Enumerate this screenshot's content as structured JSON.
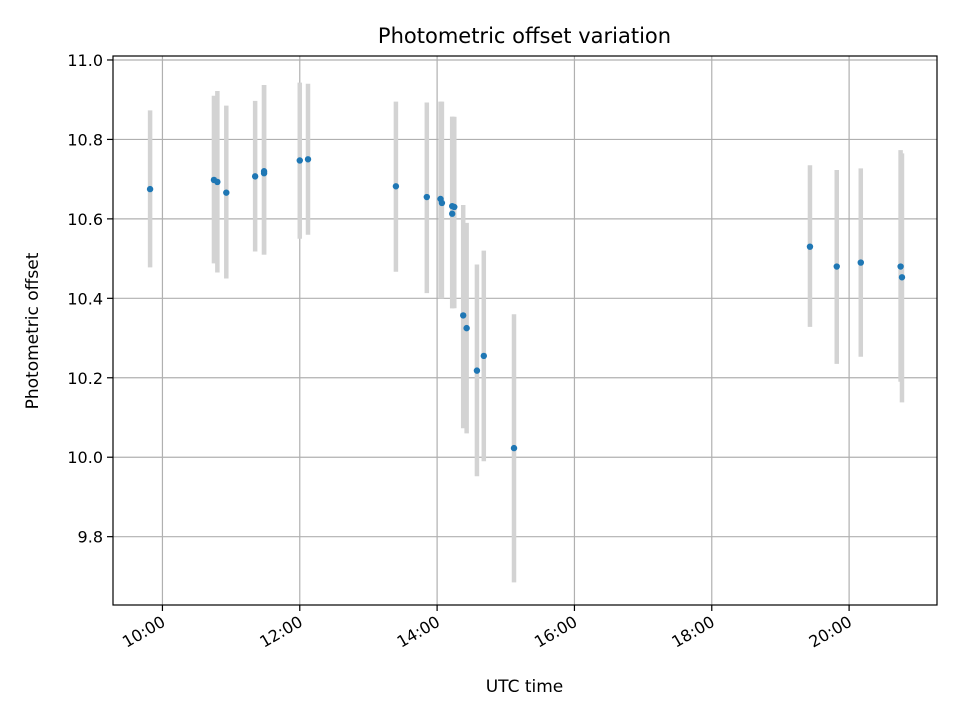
{
  "chart_data": {
    "type": "scatter",
    "title": "Photometric offset variation",
    "xlabel": "UTC time",
    "ylabel": "Photometric offset",
    "grid": true,
    "legend": "none",
    "x_unit": "hours_utc",
    "xlim": [
      9.28,
      21.28
    ],
    "ylim": [
      9.628,
      11.01
    ],
    "x_ticks": [
      {
        "value": 10,
        "label": "10:00"
      },
      {
        "value": 12,
        "label": "12:00"
      },
      {
        "value": 14,
        "label": "14:00"
      },
      {
        "value": 16,
        "label": "16:00"
      },
      {
        "value": 18,
        "label": "18:00"
      },
      {
        "value": 20,
        "label": "20:00"
      }
    ],
    "y_ticks": [
      {
        "value": 9.8,
        "label": "9.8"
      },
      {
        "value": 10.0,
        "label": "10.0"
      },
      {
        "value": 10.2,
        "label": "10.2"
      },
      {
        "value": 10.4,
        "label": "10.4"
      },
      {
        "value": 10.6,
        "label": "10.6"
      },
      {
        "value": 10.8,
        "label": "10.8"
      },
      {
        "value": 11.0,
        "label": "11.0"
      }
    ],
    "colors": {
      "point": "#1f77b4",
      "errorbar": "#d3d3d3",
      "grid": "#b0b0b0"
    },
    "series": [
      {
        "name": "offset",
        "points": [
          {
            "x": 9.82,
            "y": 10.675,
            "ylo": 10.478,
            "yhi": 10.873
          },
          {
            "x": 10.75,
            "y": 10.698,
            "ylo": 10.488,
            "yhi": 10.91
          },
          {
            "x": 10.8,
            "y": 10.693,
            "ylo": 10.465,
            "yhi": 10.922
          },
          {
            "x": 10.93,
            "y": 10.666,
            "ylo": 10.45,
            "yhi": 10.885
          },
          {
            "x": 11.35,
            "y": 10.707,
            "ylo": 10.518,
            "yhi": 10.897
          },
          {
            "x": 11.48,
            "y": 10.715,
            "ylo": 10.51,
            "yhi": 10.937
          },
          {
            "x": 11.48,
            "y": 10.72,
            "ylo": 10.51,
            "yhi": 10.937
          },
          {
            "x": 12.0,
            "y": 10.747,
            "ylo": 10.55,
            "yhi": 10.943
          },
          {
            "x": 12.12,
            "y": 10.75,
            "ylo": 10.56,
            "yhi": 10.94
          },
          {
            "x": 13.4,
            "y": 10.682,
            "ylo": 10.467,
            "yhi": 10.895
          },
          {
            "x": 13.85,
            "y": 10.655,
            "ylo": 10.413,
            "yhi": 10.893
          },
          {
            "x": 14.05,
            "y": 10.65,
            "ylo": 10.4,
            "yhi": 10.895
          },
          {
            "x": 14.07,
            "y": 10.64,
            "ylo": 10.4,
            "yhi": 10.895
          },
          {
            "x": 14.22,
            "y": 10.632,
            "ylo": 10.375,
            "yhi": 10.857
          },
          {
            "x": 14.25,
            "y": 10.63,
            "ylo": 10.375,
            "yhi": 10.857
          },
          {
            "x": 14.22,
            "y": 10.613,
            "ylo": 10.375,
            "yhi": 10.857
          },
          {
            "x": 14.38,
            "y": 10.357,
            "ylo": 10.073,
            "yhi": 10.635
          },
          {
            "x": 14.43,
            "y": 10.325,
            "ylo": 10.06,
            "yhi": 10.59
          },
          {
            "x": 14.58,
            "y": 10.218,
            "ylo": 9.952,
            "yhi": 10.485
          },
          {
            "x": 14.68,
            "y": 10.255,
            "ylo": 9.99,
            "yhi": 10.52
          },
          {
            "x": 15.12,
            "y": 10.023,
            "ylo": 9.685,
            "yhi": 10.36
          },
          {
            "x": 19.43,
            "y": 10.53,
            "ylo": 10.328,
            "yhi": 10.735
          },
          {
            "x": 19.82,
            "y": 10.48,
            "ylo": 10.235,
            "yhi": 10.723
          },
          {
            "x": 20.17,
            "y": 10.49,
            "ylo": 10.253,
            "yhi": 10.727
          },
          {
            "x": 20.75,
            "y": 10.48,
            "ylo": 10.19,
            "yhi": 10.773
          },
          {
            "x": 20.77,
            "y": 10.453,
            "ylo": 10.138,
            "yhi": 10.765
          }
        ]
      }
    ]
  }
}
